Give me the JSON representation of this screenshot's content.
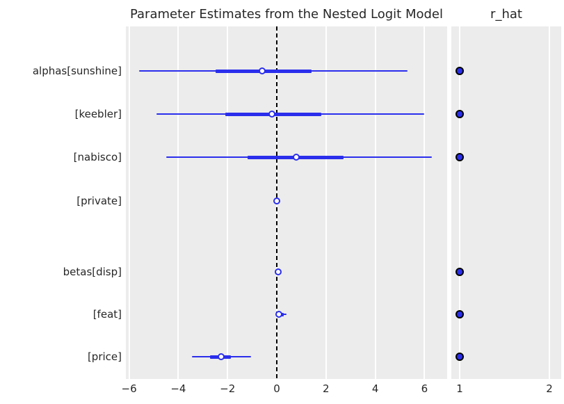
{
  "figure": {
    "background": "#ffffff",
    "panel_background": "#ececec",
    "gridline_color": "#ffffff",
    "accent_blue": "#2a2eec",
    "marker_face": "#ffffff",
    "rhat_dot_edge": "#000000",
    "text_color": "#262626",
    "reference_line_color": "#000000"
  },
  "chart_data": [
    {
      "type": "forest",
      "title": "Parameter Estimates from the Nested Logit Model",
      "xlabel": "",
      "ylabel": "",
      "xlim": [
        -6.15,
        6.9
      ],
      "grid": "vertical-white-on-gray",
      "legend_position": "none",
      "reference_line_x": 0,
      "xticks": [
        {
          "value": -6,
          "label": "−6"
        },
        {
          "value": -4,
          "label": "−4"
        },
        {
          "value": -2,
          "label": "−2"
        },
        {
          "value": 0,
          "label": "0"
        },
        {
          "value": 2,
          "label": "2"
        },
        {
          "value": 4,
          "label": "4"
        },
        {
          "value": 6,
          "label": "6"
        }
      ],
      "rows": [
        {
          "label": "alphas[sunshine]",
          "median": -0.6,
          "hdi_lower": -5.6,
          "hdi_upper": 5.3,
          "iqr_lower": -2.5,
          "iqr_upper": 1.4
        },
        {
          "label": "[keebler]",
          "median": -0.2,
          "hdi_lower": -4.9,
          "hdi_upper": 6.0,
          "iqr_lower": -2.1,
          "iqr_upper": 1.8
        },
        {
          "label": "[nabisco]",
          "median": 0.8,
          "hdi_lower": -4.5,
          "hdi_upper": 6.3,
          "iqr_lower": -1.2,
          "iqr_upper": 2.7
        },
        {
          "label": "[private]",
          "median": 0.0,
          "hdi_lower": -0.08,
          "hdi_upper": 0.08,
          "iqr_lower": -0.04,
          "iqr_upper": 0.04
        },
        {
          "label": "betas[disp]",
          "median": 0.05,
          "hdi_lower": -0.02,
          "hdi_upper": 0.15,
          "iqr_lower": 0.0,
          "iqr_upper": 0.1
        },
        {
          "label": "[feat]",
          "median": 0.08,
          "hdi_lower": -0.06,
          "hdi_upper": 0.4,
          "iqr_lower": 0.0,
          "iqr_upper": 0.28
        },
        {
          "label": "[price]",
          "median": -2.25,
          "hdi_lower": -3.45,
          "hdi_upper": -1.05,
          "iqr_lower": -2.7,
          "iqr_upper": -1.85
        }
      ]
    },
    {
      "type": "scatter",
      "title": "r_hat",
      "xlabel": "",
      "xlim": [
        0.91,
        2.13
      ],
      "grid": "vertical-white-on-gray",
      "xticks": [
        {
          "value": 1,
          "label": "1"
        },
        {
          "value": 2,
          "label": "2"
        }
      ],
      "values": [
        1.0,
        1.0,
        1.0,
        null,
        1.0,
        1.0,
        1.0
      ]
    }
  ]
}
